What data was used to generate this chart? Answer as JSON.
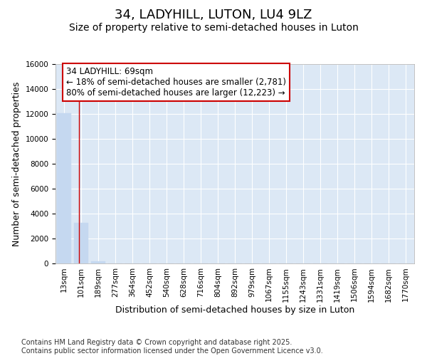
{
  "title": "34, LADYHILL, LUTON, LU4 9LZ",
  "subtitle": "Size of property relative to semi-detached houses in Luton",
  "xlabel": "Distribution of semi-detached houses by size in Luton",
  "ylabel": "Number of semi-detached properties",
  "categories": [
    "13sqm",
    "101sqm",
    "189sqm",
    "277sqm",
    "364sqm",
    "452sqm",
    "540sqm",
    "628sqm",
    "716sqm",
    "804sqm",
    "892sqm",
    "979sqm",
    "1067sqm",
    "1155sqm",
    "1243sqm",
    "1331sqm",
    "1419sqm",
    "1506sqm",
    "1594sqm",
    "1682sqm",
    "1770sqm"
  ],
  "values": [
    12050,
    3250,
    150,
    8,
    0,
    0,
    0,
    0,
    0,
    0,
    0,
    0,
    0,
    0,
    0,
    0,
    0,
    0,
    0,
    0,
    0
  ],
  "bar_color": "#c5d8f0",
  "bar_edge_color": "#c5d8f0",
  "background_color": "#dce8f5",
  "grid_color": "#ffffff",
  "annotation_text": "34 LADYHILL: 69sqm\n← 18% of semi-detached houses are smaller (2,781)\n80% of semi-detached houses are larger (12,223) →",
  "annotation_box_color": "#ffffff",
  "annotation_box_edge": "#cc0000",
  "vline_color": "#cc0000",
  "vline_x": 0.88,
  "ylim": [
    0,
    16000
  ],
  "yticks": [
    0,
    2000,
    4000,
    6000,
    8000,
    10000,
    12000,
    14000,
    16000
  ],
  "footer": "Contains HM Land Registry data © Crown copyright and database right 2025.\nContains public sector information licensed under the Open Government Licence v3.0.",
  "title_fontsize": 13,
  "subtitle_fontsize": 10,
  "footer_fontsize": 7,
  "tick_fontsize": 7.5,
  "ylabel_fontsize": 9,
  "xlabel_fontsize": 9,
  "annotation_fontsize": 8.5
}
